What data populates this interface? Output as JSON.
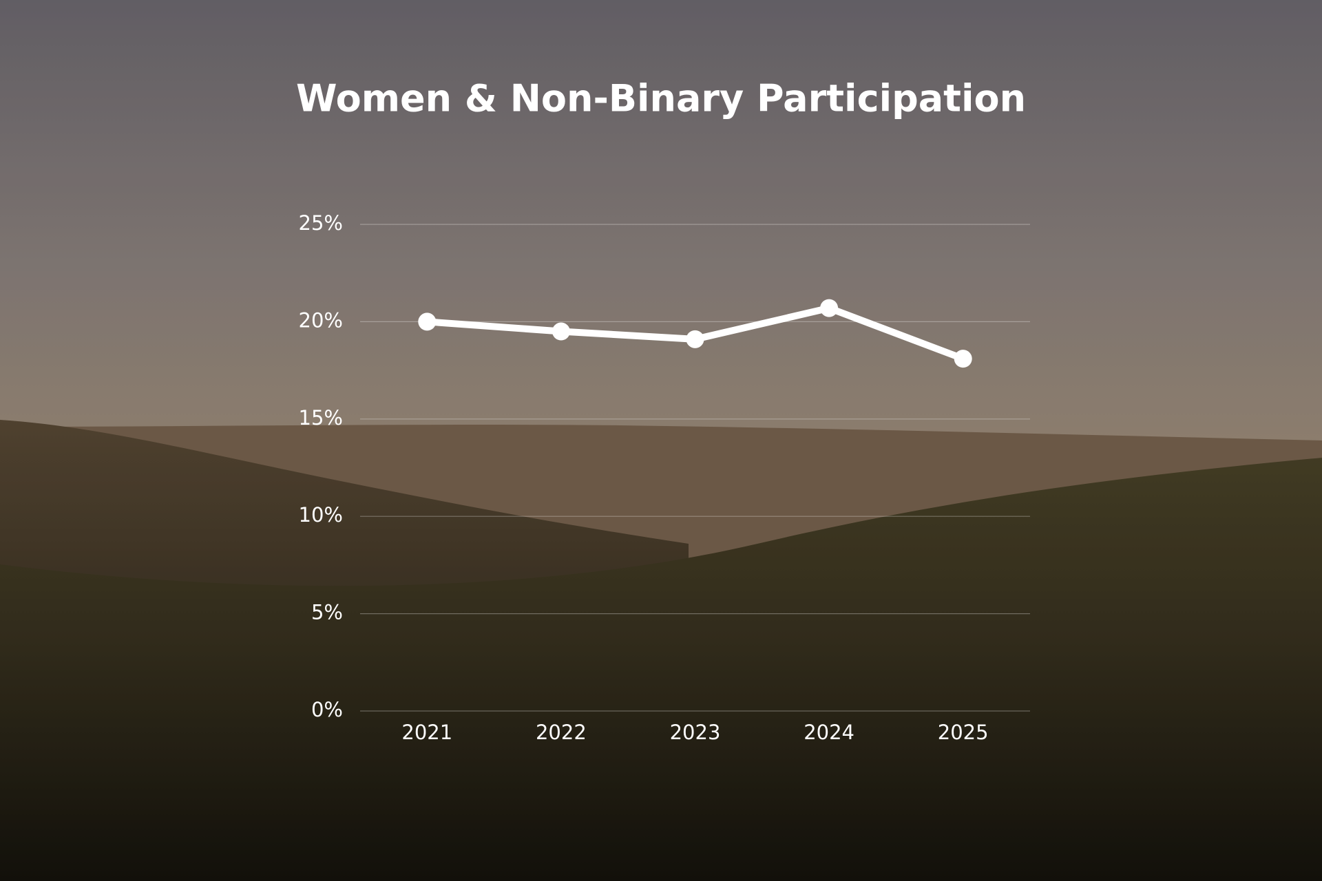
{
  "chart_data": {
    "type": "line",
    "title": "Women & Non-Binary Participation",
    "categories": [
      "2021",
      "2022",
      "2023",
      "2024",
      "2025"
    ],
    "values": [
      20,
      19.5,
      19.1,
      20.7,
      18.1
    ],
    "color": "#ffffff",
    "ylim": [
      0,
      25
    ],
    "yticks": [
      {
        "value": 0,
        "label": "0%"
      },
      {
        "value": 5,
        "label": "5%"
      },
      {
        "value": 10,
        "label": "10%"
      },
      {
        "value": 15,
        "label": "15%"
      },
      {
        "value": 20,
        "label": "20%"
      },
      {
        "value": 25,
        "label": "25%"
      }
    ],
    "grid": true
  }
}
